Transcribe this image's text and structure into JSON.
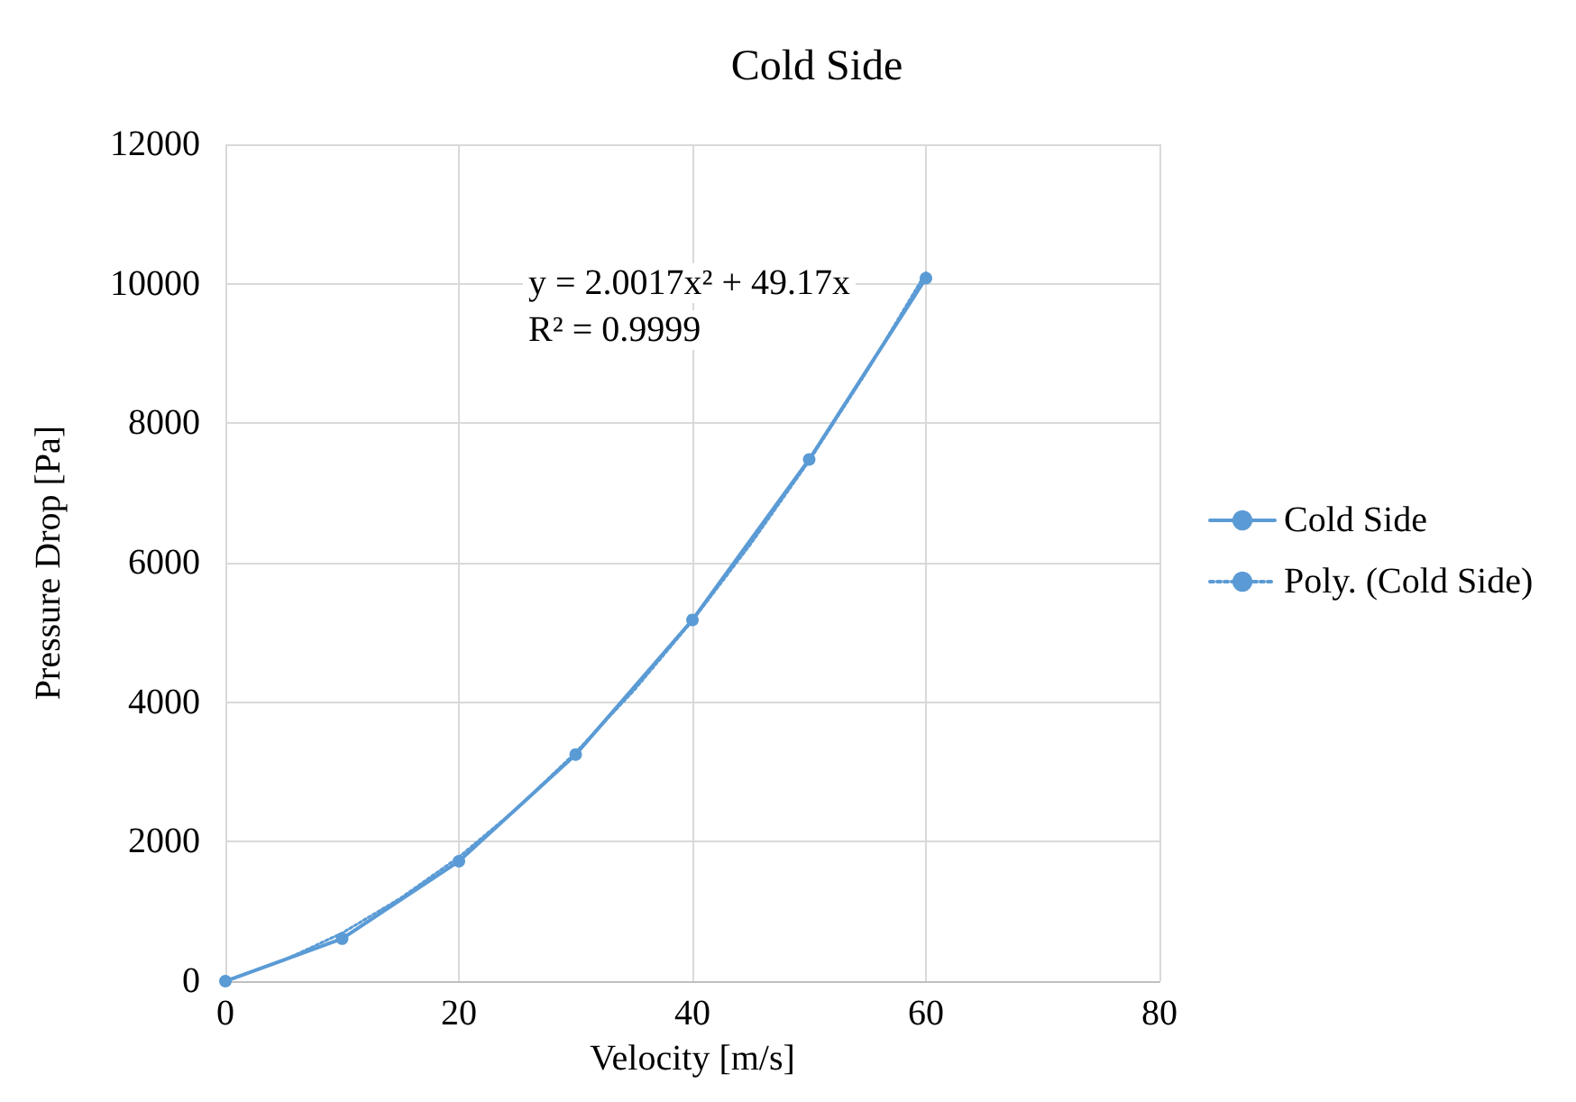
{
  "chart_data": {
    "type": "line",
    "title": "Cold Side",
    "xlabel": "Velocity [m/s]",
    "ylabel": "Pressure Drop [Pa]",
    "annotations": [
      "y = 2.0017x² + 49.17x",
      "R² = 0.9999"
    ],
    "xlim": [
      0,
      80
    ],
    "xticks": [
      0,
      20,
      40,
      60,
      80
    ],
    "ylim": [
      0,
      12000
    ],
    "yticks": [
      0,
      2000,
      4000,
      6000,
      8000,
      10000,
      12000
    ],
    "grid": true,
    "legend": "right",
    "series": [
      {
        "name": "Cold Side",
        "color": "#5b9bd5",
        "marker": "circle",
        "line_style": "solid",
        "x": [
          0,
          10,
          20,
          30,
          40,
          50,
          60
        ],
        "values": [
          0,
          610,
          1720,
          3250,
          5180,
          7480,
          10080
        ]
      },
      {
        "name": "Poly. (Cold Side)",
        "color": "#5b9bd5",
        "marker": "none",
        "line_style": "dotted",
        "x": [
          0,
          5,
          10,
          15,
          20,
          25,
          30,
          35,
          40,
          45,
          50,
          55,
          60
        ],
        "values": [
          0,
          300,
          690,
          1190,
          1780,
          2480,
          3280,
          4170,
          5170,
          6270,
          7460,
          8760,
          10160
        ]
      }
    ]
  }
}
